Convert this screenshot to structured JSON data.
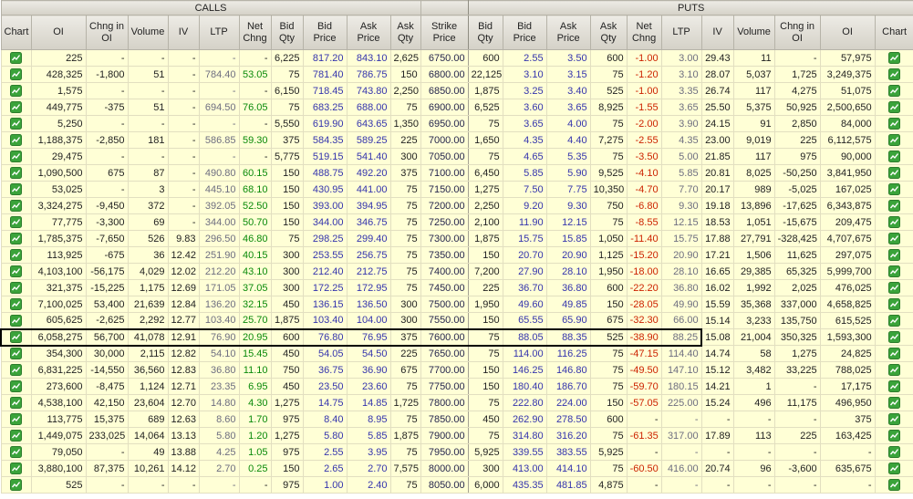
{
  "header": {
    "calls_label": "CALLS",
    "puts_label": "PUTS",
    "columns": [
      "Chart",
      "OI",
      "Chng in OI",
      "Volume",
      "IV",
      "LTP",
      "Net Chng",
      "Bid Qty",
      "Bid Price",
      "Ask Price",
      "Ask Qty",
      "Strike Price",
      "Bid Qty",
      "Bid Price",
      "Ask Price",
      "Ask Qty",
      "Net Chng",
      "LTP",
      "IV",
      "Volume",
      "Chng in OI",
      "OI",
      "Chart"
    ]
  },
  "icons": {
    "chart_button": "green-line-chart-icon"
  },
  "colors": {
    "cell_bg": "#ffffd6",
    "header_bg": "#d9d6cc",
    "positive": "#0a8a0a",
    "negative": "#cc2200",
    "price_text": "#3434ad",
    "ltp_text": "#6e6e80",
    "highlight_border": "#000000",
    "chart_icon_green": "#3aa33a"
  },
  "highlight": {
    "strike": "7600.00"
  },
  "rows": [
    [
      "225",
      "-",
      "-",
      "-",
      "-",
      "-",
      "6,225",
      "817.20",
      "843.10",
      "2,625",
      "6750.00",
      "600",
      "2.55",
      "3.50",
      "600",
      "-1.00",
      "3.00",
      "29.43",
      "11",
      "-",
      "57,975"
    ],
    [
      "428,325",
      "-1,800",
      "51",
      "-",
      "784.40",
      "53.05",
      "75",
      "781.40",
      "786.75",
      "150",
      "6800.00",
      "22,125",
      "3.10",
      "3.15",
      "75",
      "-1.20",
      "3.10",
      "28.07",
      "5,037",
      "1,725",
      "3,249,375"
    ],
    [
      "1,575",
      "-",
      "-",
      "-",
      "-",
      "-",
      "6,150",
      "718.45",
      "743.80",
      "2,250",
      "6850.00",
      "1,875",
      "3.25",
      "3.40",
      "525",
      "-1.00",
      "3.35",
      "26.74",
      "117",
      "4,275",
      "51,075"
    ],
    [
      "449,775",
      "-375",
      "51",
      "-",
      "694.50",
      "76.05",
      "75",
      "683.25",
      "688.00",
      "75",
      "6900.00",
      "6,525",
      "3.60",
      "3.65",
      "8,925",
      "-1.55",
      "3.65",
      "25.50",
      "5,375",
      "50,925",
      "2,500,650"
    ],
    [
      "5,250",
      "-",
      "-",
      "-",
      "-",
      "-",
      "5,550",
      "619.90",
      "643.65",
      "1,350",
      "6950.00",
      "75",
      "3.65",
      "4.00",
      "75",
      "-2.00",
      "3.90",
      "24.15",
      "91",
      "2,850",
      "84,000"
    ],
    [
      "1,188,375",
      "-2,850",
      "181",
      "-",
      "586.85",
      "59.30",
      "375",
      "584.35",
      "589.25",
      "225",
      "7000.00",
      "1,650",
      "4.35",
      "4.40",
      "7,275",
      "-2.55",
      "4.35",
      "23.00",
      "9,019",
      "225",
      "6,112,575"
    ],
    [
      "29,475",
      "-",
      "-",
      "-",
      "-",
      "-",
      "5,775",
      "519.15",
      "541.40",
      "300",
      "7050.00",
      "75",
      "4.65",
      "5.35",
      "75",
      "-3.50",
      "5.00",
      "21.85",
      "117",
      "975",
      "90,000"
    ],
    [
      "1,090,500",
      "675",
      "87",
      "-",
      "490.80",
      "60.15",
      "150",
      "488.75",
      "492.20",
      "375",
      "7100.00",
      "6,450",
      "5.85",
      "5.90",
      "9,525",
      "-4.10",
      "5.85",
      "20.81",
      "8,025",
      "-50,250",
      "3,841,950"
    ],
    [
      "53,025",
      "-",
      "3",
      "-",
      "445.10",
      "68.10",
      "150",
      "430.95",
      "441.00",
      "75",
      "7150.00",
      "1,275",
      "7.50",
      "7.75",
      "10,350",
      "-4.70",
      "7.70",
      "20.17",
      "989",
      "-5,025",
      "167,025"
    ],
    [
      "3,324,275",
      "-9,450",
      "372",
      "-",
      "392.05",
      "52.50",
      "150",
      "393.00",
      "394.95",
      "75",
      "7200.00",
      "2,250",
      "9.20",
      "9.30",
      "750",
      "-6.80",
      "9.30",
      "19.18",
      "13,896",
      "-17,625",
      "6,343,875"
    ],
    [
      "77,775",
      "-3,300",
      "69",
      "-",
      "344.00",
      "50.70",
      "150",
      "344.00",
      "346.75",
      "75",
      "7250.00",
      "2,100",
      "11.90",
      "12.15",
      "75",
      "-8.55",
      "12.15",
      "18.53",
      "1,051",
      "-15,675",
      "209,475"
    ],
    [
      "1,785,375",
      "-7,650",
      "526",
      "9.83",
      "296.50",
      "46.80",
      "75",
      "298.25",
      "299.40",
      "75",
      "7300.00",
      "1,875",
      "15.75",
      "15.85",
      "1,050",
      "-11.40",
      "15.75",
      "17.88",
      "27,791",
      "-328,425",
      "4,707,675"
    ],
    [
      "113,925",
      "-675",
      "36",
      "12.42",
      "251.90",
      "40.15",
      "300",
      "253.55",
      "256.75",
      "75",
      "7350.00",
      "150",
      "20.70",
      "20.90",
      "1,125",
      "-15.20",
      "20.90",
      "17.21",
      "1,506",
      "11,625",
      "297,075"
    ],
    [
      "4,103,100",
      "-56,175",
      "4,029",
      "12.02",
      "212.20",
      "43.10",
      "300",
      "212.40",
      "212.75",
      "75",
      "7400.00",
      "7,200",
      "27.90",
      "28.10",
      "1,950",
      "-18.00",
      "28.10",
      "16.65",
      "29,385",
      "65,325",
      "5,999,700"
    ],
    [
      "321,375",
      "-15,225",
      "1,175",
      "12.69",
      "171.05",
      "37.05",
      "300",
      "172.25",
      "172.95",
      "75",
      "7450.00",
      "225",
      "36.70",
      "36.80",
      "600",
      "-22.20",
      "36.80",
      "16.02",
      "1,992",
      "2,025",
      "476,025"
    ],
    [
      "7,100,025",
      "53,400",
      "21,639",
      "12.84",
      "136.20",
      "32.15",
      "450",
      "136.15",
      "136.50",
      "300",
      "7500.00",
      "1,950",
      "49.60",
      "49.85",
      "150",
      "-28.05",
      "49.90",
      "15.59",
      "35,368",
      "337,000",
      "4,658,825"
    ],
    [
      "605,625",
      "-2,625",
      "2,292",
      "12.77",
      "103.40",
      "25.70",
      "1,875",
      "103.40",
      "104.00",
      "300",
      "7550.00",
      "150",
      "65.55",
      "65.90",
      "675",
      "-32.30",
      "66.00",
      "15.14",
      "3,233",
      "135,750",
      "615,525"
    ],
    [
      "6,058,275",
      "56,700",
      "41,078",
      "12.91",
      "76.90",
      "20.95",
      "600",
      "76.80",
      "76.95",
      "375",
      "7600.00",
      "75",
      "88.05",
      "88.35",
      "525",
      "-38.90",
      "88.25",
      "15.08",
      "21,004",
      "350,325",
      "1,593,300"
    ],
    [
      "354,300",
      "30,000",
      "2,115",
      "12.82",
      "54.10",
      "15.45",
      "450",
      "54.05",
      "54.50",
      "225",
      "7650.00",
      "75",
      "114.00",
      "116.25",
      "75",
      "-47.15",
      "114.40",
      "14.74",
      "58",
      "1,275",
      "24,825"
    ],
    [
      "6,831,225",
      "-14,550",
      "36,560",
      "12.83",
      "36.80",
      "11.10",
      "750",
      "36.75",
      "36.90",
      "675",
      "7700.00",
      "150",
      "146.25",
      "146.80",
      "75",
      "-49.50",
      "147.10",
      "15.12",
      "3,482",
      "33,225",
      "788,025"
    ],
    [
      "273,600",
      "-8,475",
      "1,124",
      "12.71",
      "23.35",
      "6.95",
      "450",
      "23.50",
      "23.60",
      "75",
      "7750.00",
      "150",
      "180.40",
      "186.70",
      "75",
      "-59.70",
      "180.15",
      "14.21",
      "1",
      "-",
      "17,175"
    ],
    [
      "4,538,100",
      "42,150",
      "23,604",
      "12.70",
      "14.80",
      "4.30",
      "1,275",
      "14.75",
      "14.85",
      "1,725",
      "7800.00",
      "75",
      "222.80",
      "224.00",
      "150",
      "-57.05",
      "225.00",
      "15.24",
      "496",
      "11,175",
      "496,950"
    ],
    [
      "113,775",
      "15,375",
      "689",
      "12.63",
      "8.60",
      "1.70",
      "975",
      "8.40",
      "8.95",
      "75",
      "7850.00",
      "450",
      "262.90",
      "278.50",
      "600",
      "-",
      "-",
      "-",
      "-",
      "-",
      "375"
    ],
    [
      "1,449,075",
      "233,025",
      "14,064",
      "13.13",
      "5.80",
      "1.20",
      "1,275",
      "5.80",
      "5.85",
      "1,875",
      "7900.00",
      "75",
      "314.80",
      "316.20",
      "75",
      "-61.35",
      "317.00",
      "17.89",
      "113",
      "225",
      "163,425"
    ],
    [
      "79,050",
      "-",
      "49",
      "13.88",
      "4.25",
      "1.05",
      "975",
      "2.55",
      "3.95",
      "75",
      "7950.00",
      "5,925",
      "339.55",
      "383.55",
      "5,925",
      "-",
      "-",
      "-",
      "-",
      "-",
      "-"
    ],
    [
      "3,880,100",
      "87,375",
      "10,261",
      "14.12",
      "2.70",
      "0.25",
      "150",
      "2.65",
      "2.70",
      "7,575",
      "8000.00",
      "300",
      "413.00",
      "414.10",
      "75",
      "-60.50",
      "416.00",
      "20.74",
      "96",
      "-3,600",
      "635,675"
    ],
    [
      "525",
      "-",
      "-",
      "-",
      "-",
      "-",
      "975",
      "1.00",
      "2.40",
      "75",
      "8050.00",
      "6,000",
      "435.35",
      "481.85",
      "4,875",
      "-",
      "-",
      "-",
      "-",
      "-",
      "-"
    ]
  ]
}
